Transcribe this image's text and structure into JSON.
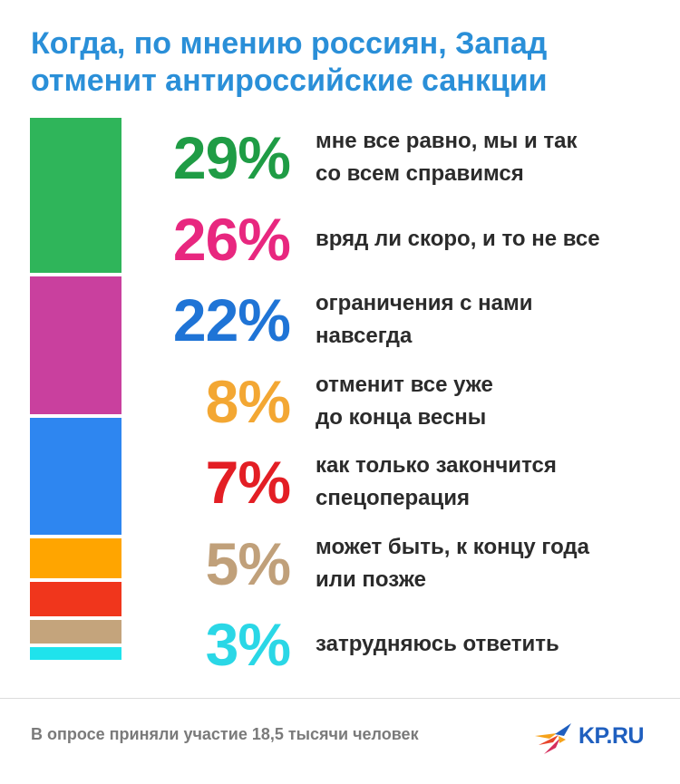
{
  "title": {
    "line1": "Когда, по мнению россиян, Запад",
    "line2": "отменит антироссийские санкции"
  },
  "chart_data": {
    "type": "bar",
    "stacked": true,
    "orientation": "vertical",
    "categories": [
      "мне все равно, мы и так со всем справимся",
      "вряд ли скоро, и то не все",
      "ограничения с нами навсегда",
      "отменит все уже до конца весны",
      "как только закончится спецоперация",
      "может быть, к концу года или позже",
      "затрудняюсь ответить"
    ],
    "values": [
      29,
      26,
      22,
      8,
      7,
      5,
      3
    ],
    "unit": "%",
    "colors": [
      "#2fb55a",
      "#c9409e",
      "#2e86f0",
      "#ffa500",
      "#f0361c",
      "#c4a47c",
      "#1fe3ec"
    ],
    "label_colors": [
      "#1f9c45",
      "#e8277f",
      "#1f74d6",
      "#f3a733",
      "#e31e24",
      "#c0a07a",
      "#2ad7e6"
    ],
    "pct_labels": [
      "29%",
      "26%",
      "22%",
      "8%",
      "7%",
      "5%",
      "3%"
    ],
    "label_lines": [
      [
        "мне все равно, мы и так",
        "со всем справимся"
      ],
      [
        "вряд ли скоро, и то не все"
      ],
      [
        "ограничения с нами",
        "навсегда"
      ],
      [
        "отменит все уже",
        "до конца весны"
      ],
      [
        "как только закончится",
        "спецоперация"
      ],
      [
        "может быть, к концу года",
        "или позже"
      ],
      [
        "затрудняюсь ответить"
      ]
    ]
  },
  "footer": {
    "note": "В опросе приняли участие 18,5 тысячи человек",
    "logo_text": "KP.RU"
  }
}
